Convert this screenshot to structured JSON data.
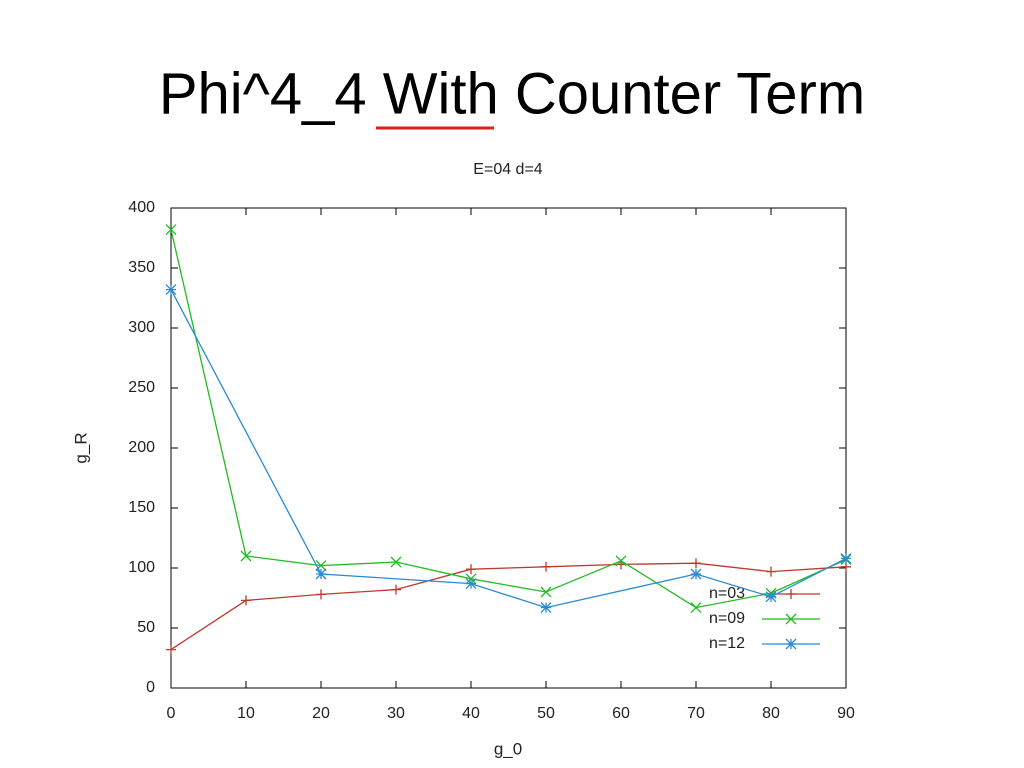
{
  "slide_title": "Phi^4_4 With Counter Term",
  "chart_data": {
    "type": "line",
    "title": "E=04 d=4",
    "x_label": "g_0",
    "y_label": "g_R",
    "xlim": [
      0,
      90
    ],
    "ylim": [
      0,
      400
    ],
    "xticks": [
      0,
      10,
      20,
      30,
      40,
      50,
      60,
      70,
      80,
      90
    ],
    "yticks": [
      0,
      50,
      100,
      150,
      200,
      250,
      300,
      350,
      400
    ],
    "legend": "lower-right",
    "series": [
      {
        "name": "n=03",
        "color": "#c0392b",
        "marker": "plus",
        "x": [
          0,
          10,
          20,
          30,
          40,
          50,
          60,
          70,
          80,
          90
        ],
        "values": [
          32,
          73,
          78,
          82,
          99,
          101,
          103,
          104,
          97,
          101
        ]
      },
      {
        "name": "n=09",
        "color": "#22bb22",
        "marker": "cross",
        "x": [
          0,
          10,
          20,
          30,
          40,
          50,
          60,
          70,
          80,
          90
        ],
        "values": [
          382,
          110,
          102,
          105,
          91,
          80,
          106,
          67,
          79,
          107
        ]
      },
      {
        "name": "n=12",
        "color": "#2a8ad4",
        "marker": "star",
        "x": [
          0,
          20,
          40,
          50,
          70,
          80,
          90
        ],
        "values": [
          332,
          95,
          87,
          67,
          95,
          76,
          108
        ]
      }
    ]
  }
}
